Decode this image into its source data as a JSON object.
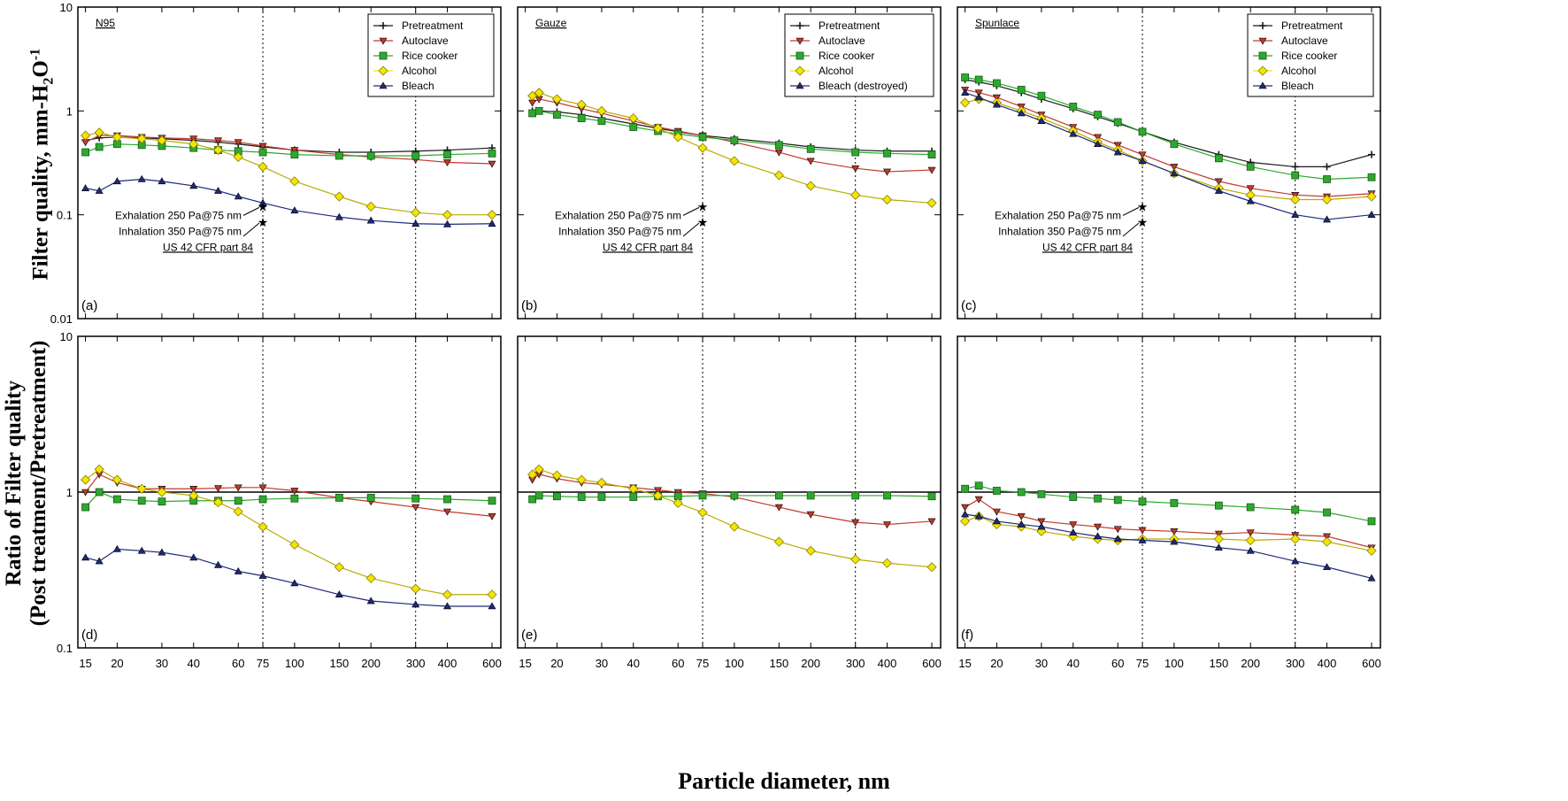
{
  "figure": {
    "ylabel_top": "Filter quality, mm-H",
    "ylabel_top_sub": "2",
    "ylabel_top_tail": "O",
    "ylabel_top_sup": "-1",
    "ylabel_bottom_line1": "Ratio of Filter quality",
    "ylabel_bottom_line2": "(Post treatment/Pretreatment)",
    "xlabel": "Particle diameter, nm"
  },
  "colors": {
    "Pretreatment": "#1a1a1a",
    "Autoclave": "#c0392b",
    "Rice cooker": "#2ea82e",
    "Alcohol": "#f2e600",
    "Bleach": "#1f2a7a"
  },
  "annotations": {
    "exhalation": "Exhalation 250 Pa@75 nm",
    "inhalation": "Inhalation 350 Pa@75 nm",
    "standard": "US 42 CFR part 84"
  },
  "chart_data": [
    {
      "type": "line",
      "panel": "(a)",
      "title": "N95",
      "xscale": "log",
      "yscale": "log",
      "xlim": [
        14,
        650
      ],
      "ylim": [
        0.01,
        10
      ],
      "xticks": [
        15,
        20,
        30,
        40,
        60,
        75,
        100,
        150,
        200,
        300,
        400,
        600
      ],
      "yticks": [
        0.01,
        0.1,
        1,
        10
      ],
      "ref_vlines": [
        75,
        300
      ],
      "legend": [
        "Pretreatment",
        "Autoclave",
        "Rice cooker",
        "Alcohol",
        "Bleach"
      ],
      "standard_points": [
        {
          "x": 75,
          "y": 0.12
        },
        {
          "x": 75,
          "y": 0.085
        }
      ],
      "x": [
        15,
        17,
        20,
        25,
        30,
        40,
        50,
        60,
        75,
        100,
        150,
        200,
        300,
        400,
        600
      ],
      "series": [
        {
          "name": "Pretreatment",
          "values": [
            0.52,
            0.55,
            0.56,
            0.55,
            0.54,
            0.52,
            0.5,
            0.48,
            0.45,
            0.42,
            0.4,
            0.4,
            0.41,
            0.42,
            0.44
          ]
        },
        {
          "name": "Autoclave",
          "values": [
            0.5,
            0.58,
            0.58,
            0.56,
            0.55,
            0.54,
            0.52,
            0.5,
            0.46,
            0.42,
            0.38,
            0.36,
            0.34,
            0.32,
            0.31
          ]
        },
        {
          "name": "Rice cooker",
          "values": [
            0.4,
            0.45,
            0.48,
            0.47,
            0.46,
            0.44,
            0.42,
            0.41,
            0.4,
            0.38,
            0.37,
            0.37,
            0.37,
            0.38,
            0.39
          ]
        },
        {
          "name": "Alcohol",
          "values": [
            0.58,
            0.62,
            0.56,
            0.54,
            0.52,
            0.48,
            0.42,
            0.36,
            0.29,
            0.21,
            0.15,
            0.12,
            0.105,
            0.1,
            0.1
          ]
        },
        {
          "name": "Bleach",
          "values": [
            0.18,
            0.17,
            0.21,
            0.22,
            0.21,
            0.19,
            0.17,
            0.15,
            0.13,
            0.11,
            0.095,
            0.088,
            0.082,
            0.081,
            0.082
          ]
        }
      ]
    },
    {
      "type": "line",
      "panel": "(b)",
      "title": "Gauze",
      "xscale": "log",
      "yscale": "log",
      "xlim": [
        14,
        650
      ],
      "ylim": [
        0.01,
        10
      ],
      "xticks": [
        15,
        20,
        30,
        40,
        60,
        75,
        100,
        150,
        200,
        300,
        400,
        600
      ],
      "yticks": [
        0.01,
        0.1,
        1,
        10
      ],
      "ref_vlines": [
        75,
        300
      ],
      "legend": [
        "Pretreatment",
        "Autoclave",
        "Rice cooker",
        "Alcohol",
        "Bleach (destroyed)"
      ],
      "standard_points": [
        {
          "x": 75,
          "y": 0.12
        },
        {
          "x": 75,
          "y": 0.085
        }
      ],
      "x": [
        16,
        17,
        20,
        25,
        30,
        40,
        50,
        60,
        75,
        100,
        150,
        200,
        300,
        400,
        600
      ],
      "series": [
        {
          "name": "Pretreatment",
          "values": [
            1.0,
            1.0,
            0.98,
            0.92,
            0.85,
            0.75,
            0.68,
            0.63,
            0.58,
            0.54,
            0.49,
            0.45,
            0.42,
            0.41,
            0.41
          ]
        },
        {
          "name": "Autoclave",
          "values": [
            1.2,
            1.3,
            1.2,
            1.05,
            0.95,
            0.8,
            0.7,
            0.64,
            0.58,
            0.5,
            0.4,
            0.33,
            0.28,
            0.26,
            0.27
          ]
        },
        {
          "name": "Rice cooker",
          "values": [
            0.95,
            1.0,
            0.92,
            0.85,
            0.8,
            0.7,
            0.64,
            0.6,
            0.56,
            0.52,
            0.47,
            0.43,
            0.4,
            0.39,
            0.38
          ]
        },
        {
          "name": "Alcohol",
          "values": [
            1.4,
            1.5,
            1.3,
            1.15,
            1.0,
            0.85,
            0.68,
            0.56,
            0.44,
            0.33,
            0.24,
            0.19,
            0.155,
            0.14,
            0.13
          ]
        }
      ]
    },
    {
      "type": "line",
      "panel": "(c)",
      "title": "Spunlace",
      "xscale": "log",
      "yscale": "log",
      "xlim": [
        14,
        650
      ],
      "ylim": [
        0.01,
        10
      ],
      "xticks": [
        15,
        20,
        30,
        40,
        60,
        75,
        100,
        150,
        200,
        300,
        400,
        600
      ],
      "yticks": [
        0.01,
        0.1,
        1,
        10
      ],
      "ref_vlines": [
        75,
        300
      ],
      "legend": [
        "Pretreatment",
        "Autoclave",
        "Rice cooker",
        "Alcohol",
        "Bleach"
      ],
      "standard_points": [
        {
          "x": 75,
          "y": 0.12
        },
        {
          "x": 75,
          "y": 0.085
        }
      ],
      "x": [
        15,
        17,
        20,
        25,
        30,
        40,
        50,
        60,
        75,
        100,
        150,
        200,
        300,
        400,
        600
      ],
      "series": [
        {
          "name": "Pretreatment",
          "values": [
            2.0,
            1.9,
            1.75,
            1.5,
            1.3,
            1.05,
            0.88,
            0.76,
            0.63,
            0.5,
            0.38,
            0.32,
            0.29,
            0.29,
            0.38
          ]
        },
        {
          "name": "Autoclave",
          "values": [
            1.6,
            1.5,
            1.35,
            1.1,
            0.92,
            0.7,
            0.56,
            0.47,
            0.38,
            0.29,
            0.21,
            0.18,
            0.155,
            0.15,
            0.16
          ]
        },
        {
          "name": "Rice cooker",
          "values": [
            2.1,
            2.0,
            1.85,
            1.6,
            1.4,
            1.1,
            0.92,
            0.78,
            0.63,
            0.48,
            0.35,
            0.29,
            0.24,
            0.22,
            0.23
          ]
        },
        {
          "name": "Alcohol",
          "values": [
            1.2,
            1.3,
            1.2,
            1.0,
            0.85,
            0.64,
            0.5,
            0.42,
            0.33,
            0.25,
            0.18,
            0.155,
            0.14,
            0.14,
            0.15
          ]
        },
        {
          "name": "Bleach",
          "values": [
            1.5,
            1.35,
            1.15,
            0.95,
            0.8,
            0.6,
            0.48,
            0.4,
            0.33,
            0.25,
            0.17,
            0.135,
            0.1,
            0.09,
            0.1
          ]
        }
      ]
    },
    {
      "type": "line",
      "panel": "(d)",
      "xscale": "log",
      "yscale": "log",
      "xlim": [
        14,
        650
      ],
      "ylim": [
        0.1,
        10
      ],
      "xticks": [
        15,
        20,
        30,
        40,
        60,
        75,
        100,
        150,
        200,
        300,
        400,
        600
      ],
      "yticks": [
        0.1,
        1,
        10
      ],
      "ref_vlines": [
        75,
        300
      ],
      "ref_hline": 1,
      "x": [
        15,
        17,
        20,
        25,
        30,
        40,
        50,
        60,
        75,
        100,
        150,
        200,
        300,
        400,
        600
      ],
      "series": [
        {
          "name": "Autoclave",
          "values": [
            1.0,
            1.3,
            1.15,
            1.05,
            1.05,
            1.05,
            1.06,
            1.07,
            1.07,
            1.02,
            0.92,
            0.87,
            0.8,
            0.75,
            0.7
          ]
        },
        {
          "name": "Rice cooker",
          "values": [
            0.8,
            1.0,
            0.9,
            0.88,
            0.87,
            0.88,
            0.88,
            0.88,
            0.9,
            0.91,
            0.92,
            0.92,
            0.91,
            0.9,
            0.88
          ]
        },
        {
          "name": "Alcohol",
          "values": [
            1.2,
            1.4,
            1.2,
            1.05,
            1.0,
            0.95,
            0.86,
            0.75,
            0.6,
            0.46,
            0.33,
            0.28,
            0.24,
            0.22,
            0.22
          ]
        },
        {
          "name": "Bleach",
          "values": [
            0.38,
            0.36,
            0.43,
            0.42,
            0.41,
            0.38,
            0.34,
            0.31,
            0.29,
            0.26,
            0.22,
            0.2,
            0.19,
            0.185,
            0.185
          ]
        }
      ]
    },
    {
      "type": "line",
      "panel": "(e)",
      "xscale": "log",
      "yscale": "log",
      "xlim": [
        14,
        650
      ],
      "ylim": [
        0.1,
        10
      ],
      "xticks": [
        15,
        20,
        30,
        40,
        60,
        75,
        100,
        150,
        200,
        300,
        400,
        600
      ],
      "yticks": [
        0.1,
        1,
        10
      ],
      "ref_vlines": [
        75,
        300
      ],
      "ref_hline": 1,
      "x": [
        16,
        17,
        20,
        25,
        30,
        40,
        50,
        60,
        75,
        100,
        150,
        200,
        300,
        400,
        600
      ],
      "series": [
        {
          "name": "Autoclave",
          "values": [
            1.2,
            1.3,
            1.22,
            1.15,
            1.12,
            1.07,
            1.03,
            1.0,
            0.98,
            0.93,
            0.8,
            0.72,
            0.64,
            0.62,
            0.65
          ]
        },
        {
          "name": "Rice cooker",
          "values": [
            0.9,
            0.95,
            0.94,
            0.93,
            0.93,
            0.93,
            0.94,
            0.94,
            0.95,
            0.95,
            0.95,
            0.95,
            0.95,
            0.95,
            0.94
          ]
        },
        {
          "name": "Alcohol",
          "values": [
            1.3,
            1.4,
            1.28,
            1.2,
            1.15,
            1.05,
            0.95,
            0.85,
            0.74,
            0.6,
            0.48,
            0.42,
            0.37,
            0.35,
            0.33
          ]
        }
      ]
    },
    {
      "type": "line",
      "panel": "(f)",
      "xscale": "log",
      "yscale": "log",
      "xlim": [
        14,
        650
      ],
      "ylim": [
        0.1,
        10
      ],
      "xticks": [
        15,
        20,
        30,
        40,
        60,
        75,
        100,
        150,
        200,
        300,
        400,
        600
      ],
      "yticks": [
        0.1,
        1,
        10
      ],
      "ref_vlines": [
        75,
        300
      ],
      "ref_hline": 1,
      "x": [
        15,
        17,
        20,
        25,
        30,
        40,
        50,
        60,
        75,
        100,
        150,
        200,
        300,
        400,
        600
      ],
      "series": [
        {
          "name": "Autoclave",
          "values": [
            0.8,
            0.9,
            0.75,
            0.7,
            0.65,
            0.62,
            0.6,
            0.58,
            0.57,
            0.56,
            0.54,
            0.55,
            0.53,
            0.52,
            0.44
          ]
        },
        {
          "name": "Rice cooker",
          "values": [
            1.05,
            1.1,
            1.02,
            1.0,
            0.97,
            0.93,
            0.91,
            0.89,
            0.87,
            0.85,
            0.82,
            0.8,
            0.77,
            0.74,
            0.65
          ]
        },
        {
          "name": "Alcohol",
          "values": [
            0.65,
            0.7,
            0.62,
            0.6,
            0.56,
            0.52,
            0.5,
            0.49,
            0.5,
            0.5,
            0.5,
            0.49,
            0.5,
            0.48,
            0.42
          ]
        },
        {
          "name": "Bleach",
          "values": [
            0.72,
            0.7,
            0.65,
            0.62,
            0.6,
            0.55,
            0.52,
            0.5,
            0.49,
            0.48,
            0.44,
            0.42,
            0.36,
            0.33,
            0.28
          ]
        }
      ]
    }
  ]
}
